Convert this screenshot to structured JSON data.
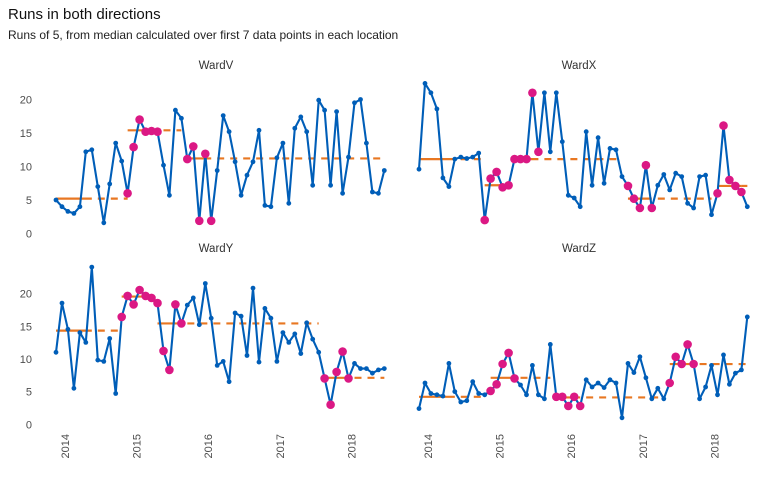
{
  "header": {
    "title": "Runs in both directions",
    "subtitle": "Runs of 5, from median calculated over first 7 data points in each location"
  },
  "colors": {
    "line": "#005EB8",
    "point": "#005EB8",
    "signal_point": "#DB1884",
    "median_line": "#E87722",
    "axis_text": "#4d4d4d",
    "strip_text": "#333333",
    "background": "#ffffff"
  },
  "axes": {
    "y_ticks": [
      "0",
      "5",
      "10",
      "15",
      "20"
    ],
    "x_ticks": [
      "2014",
      "2015",
      "2016",
      "2017",
      "2018"
    ],
    "grid": "none",
    "legend": "none"
  },
  "chart_data": [
    {
      "type": "line",
      "title": "WardV",
      "ylim": [
        0,
        22.5
      ],
      "values": [
        5,
        4,
        3.3,
        3,
        4,
        12.2,
        12.5,
        7,
        1.6,
        7.4,
        13.5,
        10.8,
        6,
        12.9,
        17,
        15.2,
        15.3,
        15.2,
        10.2,
        5.7,
        18.4,
        17.2,
        11.1,
        13,
        1.9,
        11.9,
        1.9,
        9.4,
        17.6,
        15.2,
        10.7,
        5.7,
        8.7,
        10.7,
        15.4,
        4.2,
        4,
        11.3,
        13.5,
        4.5,
        15.7,
        17.4,
        15.2,
        7.2,
        19.9,
        18.4,
        7.2,
        18.2,
        6,
        11.4,
        19.5,
        20,
        13.5,
        6.2,
        6,
        9.4
      ],
      "signals": [
        13,
        14,
        15,
        16,
        17,
        18,
        23,
        24,
        25,
        26,
        27
      ],
      "medians": [
        {
          "value": 5.2,
          "from": 1,
          "to": 7,
          "style": "solid"
        },
        {
          "value": 5.2,
          "from": 8,
          "to": 13,
          "style": "dashed"
        },
        {
          "value": 15.4,
          "from": 13,
          "to": 18,
          "style": "solid"
        },
        {
          "value": 15.4,
          "from": 19,
          "to": 22,
          "style": "dashed"
        },
        {
          "value": 11.2,
          "from": 23,
          "to": 27,
          "style": "solid"
        },
        {
          "value": 11.2,
          "from": 28,
          "to": 56,
          "style": "dashed"
        }
      ]
    },
    {
      "type": "line",
      "title": "WardX",
      "ylim": [
        0,
        22.5
      ],
      "values": [
        9.6,
        22.4,
        21,
        18.6,
        8.3,
        7,
        11.1,
        11.4,
        11.2,
        11.4,
        12,
        2,
        8.2,
        9.2,
        6.9,
        7.2,
        11.1,
        11.1,
        11.1,
        21,
        12.2,
        21,
        12.2,
        21,
        13.7,
        5.7,
        5.3,
        4,
        15.2,
        7.2,
        14.3,
        7.5,
        12.7,
        12.5,
        8.5,
        7.1,
        5.2,
        3.8,
        10.2,
        3.8,
        7.2,
        8.8,
        6.5,
        9,
        8.5,
        4.5,
        3.8,
        8.5,
        8.7,
        2.8,
        6,
        16.1,
        8,
        7.1,
        6.2,
        4
      ],
      "signals": [
        12,
        13,
        14,
        15,
        16,
        17,
        18,
        19,
        20,
        21,
        36,
        37,
        38,
        39,
        40,
        51,
        52,
        53,
        54,
        55
      ],
      "medians": [
        {
          "value": 11.1,
          "from": 1,
          "to": 7,
          "style": "solid"
        },
        {
          "value": 11.1,
          "from": 8,
          "to": 12,
          "style": "dashed"
        },
        {
          "value": 7.2,
          "from": 12,
          "to": 16,
          "style": "solid"
        },
        {
          "value": 11.1,
          "from": 17,
          "to": 21,
          "style": "solid"
        },
        {
          "value": 11.1,
          "from": 22,
          "to": 35,
          "style": "dashed"
        },
        {
          "value": 5.2,
          "from": 36,
          "to": 40,
          "style": "solid"
        },
        {
          "value": 5.2,
          "from": 41,
          "to": 50,
          "style": "dashed"
        },
        {
          "value": 7.1,
          "from": 51,
          "to": 55,
          "style": "solid"
        },
        {
          "value": 7.1,
          "from": 55,
          "to": 56,
          "style": "dashed"
        }
      ]
    },
    {
      "type": "line",
      "title": "WardY",
      "ylim": [
        0,
        24.5
      ],
      "values": [
        11,
        18.5,
        14.5,
        5.5,
        14,
        12.5,
        24,
        9.8,
        9.6,
        13.1,
        4.7,
        16.4,
        19.6,
        18.3,
        20.5,
        19.6,
        19.3,
        18.5,
        11.2,
        8.3,
        18.3,
        15.4,
        18.2,
        19.3,
        15.2,
        21.5,
        16.2,
        9,
        9.6,
        6.5,
        17,
        16.5,
        10.5,
        20.8,
        9.5,
        17.7,
        16.2,
        9.6,
        14,
        12.5,
        13.8,
        10.8,
        15.5,
        13,
        11,
        7,
        3,
        8,
        11.1,
        7,
        9.3,
        8.5,
        8.5,
        7.8,
        8.3,
        8.5
      ],
      "signals": [
        12,
        13,
        14,
        15,
        16,
        17,
        18,
        19,
        20,
        21,
        22,
        46,
        47,
        48,
        49,
        50
      ],
      "medians": [
        {
          "value": 14.3,
          "from": 1,
          "to": 7,
          "style": "solid"
        },
        {
          "value": 14.3,
          "from": 8,
          "to": 12,
          "style": "dashed"
        },
        {
          "value": 19.5,
          "from": 12,
          "to": 17,
          "style": "solid"
        },
        {
          "value": 15.4,
          "from": 18,
          "to": 22,
          "style": "solid"
        },
        {
          "value": 15.4,
          "from": 23,
          "to": 45,
          "style": "dashed"
        },
        {
          "value": 7.1,
          "from": 46,
          "to": 50,
          "style": "solid"
        },
        {
          "value": 7.1,
          "from": 51,
          "to": 56,
          "style": "dashed"
        }
      ]
    },
    {
      "type": "line",
      "title": "WardZ",
      "ylim": [
        0,
        24.5
      ],
      "values": [
        2.4,
        6.3,
        4.7,
        4.5,
        4.3,
        9.3,
        5,
        3.4,
        3.6,
        6.5,
        4.7,
        4.5,
        5.1,
        6.1,
        9.2,
        10.9,
        7,
        6,
        4.5,
        9,
        4.5,
        3.9,
        12.2,
        4.2,
        4.2,
        2.8,
        4.2,
        2.8,
        6.8,
        5.7,
        6.3,
        5.6,
        6.8,
        6.3,
        1,
        9.3,
        7.9,
        10.3,
        7.1,
        3.9,
        5.5,
        3.9,
        6.3,
        10.3,
        9.2,
        12.2,
        9.2,
        3.9,
        5.7,
        9,
        4.5,
        10.6,
        6.1,
        7.8,
        8.3,
        16.4
      ],
      "signals": [
        13,
        14,
        15,
        16,
        17,
        24,
        25,
        26,
        27,
        28,
        43,
        44,
        45,
        46,
        47
      ],
      "medians": [
        {
          "value": 4.2,
          "from": 1,
          "to": 7,
          "style": "solid"
        },
        {
          "value": 4.2,
          "from": 8,
          "to": 12,
          "style": "dashed"
        },
        {
          "value": 7.1,
          "from": 13,
          "to": 17,
          "style": "solid"
        },
        {
          "value": 7.1,
          "from": 18,
          "to": 23,
          "style": "dashed"
        },
        {
          "value": 4.1,
          "from": 24,
          "to": 28,
          "style": "solid"
        },
        {
          "value": 4.1,
          "from": 29,
          "to": 42,
          "style": "dashed"
        },
        {
          "value": 9.2,
          "from": 43,
          "to": 47,
          "style": "solid"
        },
        {
          "value": 9.2,
          "from": 48,
          "to": 56,
          "style": "dashed"
        }
      ]
    }
  ]
}
